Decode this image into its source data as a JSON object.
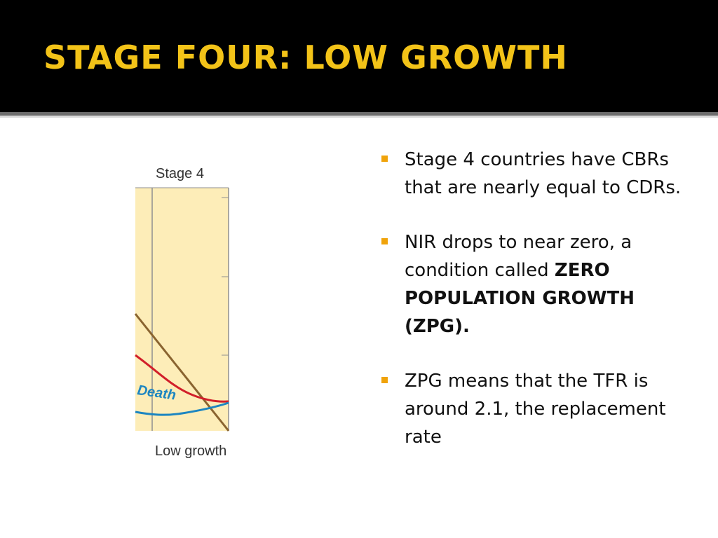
{
  "slide": {
    "title": "STAGE FOUR: LOW GROWTH"
  },
  "figure": {
    "stage_label": "Stage 4",
    "death_label": "Death",
    "caption": "Low growth",
    "colors": {
      "panel": "#fdedb8",
      "birth_line": "#d11f2a",
      "death_line": "#1d86c1",
      "nir_line": "#8a6430",
      "frame": "#8f8f8f"
    }
  },
  "bullets": [
    {
      "text": "Stage 4 countries have CBRs that are nearly equal to CDRs.",
      "bold": ""
    },
    {
      "text": "NIR drops to near zero, a condition called ",
      "bold": "ZERO POPULATION GROWTH (ZPG)."
    },
    {
      "text": "ZPG means that the TFR is around 2.1, the replacement rate",
      "bold": ""
    }
  ],
  "colors": {
    "title": "#f3c318",
    "header_bg": "#000000",
    "bullet": "#f0a30a"
  }
}
